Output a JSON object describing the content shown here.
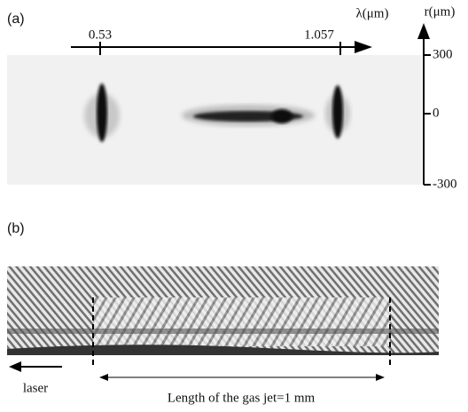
{
  "panel_a": {
    "label": "(a)",
    "x_axis": {
      "title": "λ(μm)",
      "ticks": [
        "0.53",
        "1.057"
      ]
    },
    "y_axis": {
      "title": "r(μm)",
      "ticks": [
        "300",
        "0",
        "-300"
      ]
    }
  },
  "panel_b": {
    "label": "(b)",
    "laser_label": "laser",
    "jet_label": "Length of the gas jet=1 mm"
  }
}
